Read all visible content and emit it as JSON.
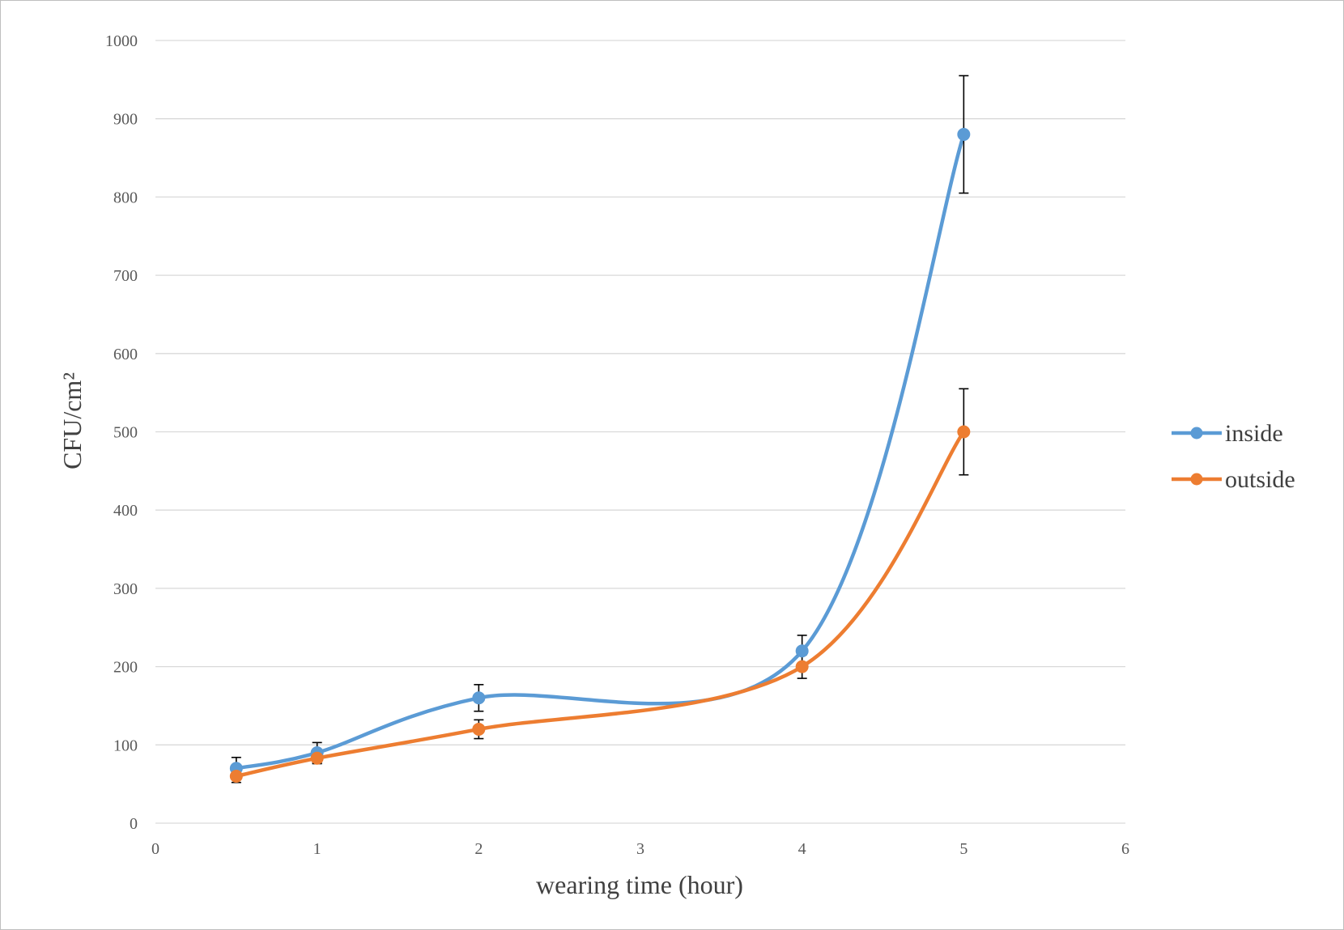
{
  "chart_data": {
    "type": "line",
    "xlabel": "wearing time (hour)",
    "ylabel": "CFU/cm²",
    "xlim": [
      0,
      6
    ],
    "ylim": [
      0,
      1000
    ],
    "x_ticks": [
      "0",
      "1",
      "2",
      "3",
      "4",
      "5",
      "6"
    ],
    "y_ticks": [
      "0",
      "100",
      "200",
      "300",
      "400",
      "500",
      "600",
      "700",
      "800",
      "900",
      "1000"
    ],
    "grid": "horizontal",
    "legend_position": "right",
    "smooth": true,
    "x": [
      0.5,
      1,
      2,
      4,
      5
    ],
    "series": [
      {
        "name": "inside",
        "color": "#5B9BD5",
        "values": [
          70,
          90,
          160,
          220,
          880
        ],
        "error": [
          14,
          13,
          17,
          20,
          75
        ]
      },
      {
        "name": "outside",
        "color": "#ED7D31",
        "values": [
          60,
          83,
          120,
          200,
          500
        ],
        "error": [
          8,
          7,
          12,
          15,
          55
        ]
      }
    ],
    "error_bar_color": "#000000"
  }
}
